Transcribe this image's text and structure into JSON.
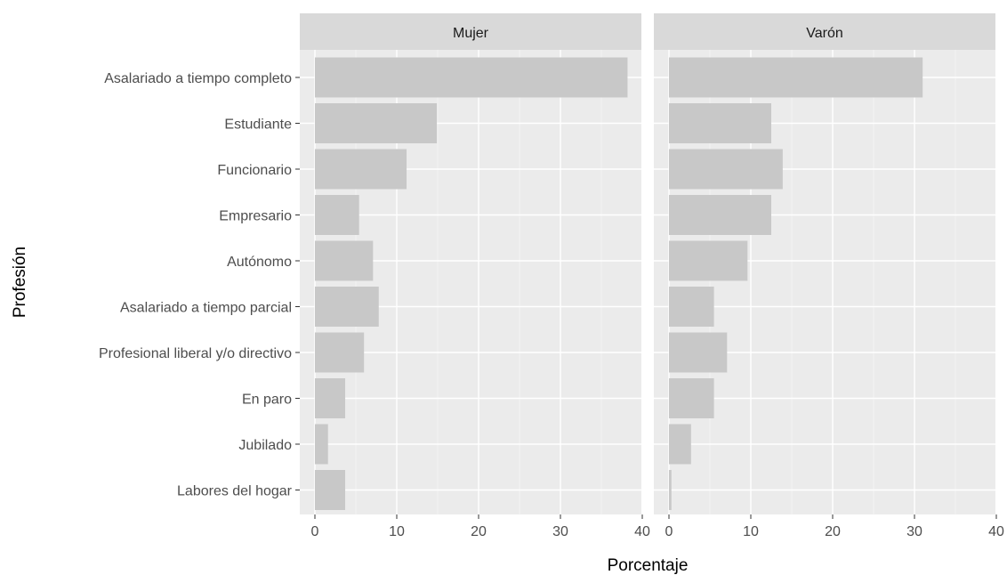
{
  "chart_data": {
    "type": "bar",
    "orientation": "horizontal",
    "xlabel": "Porcentaje",
    "ylabel": "Profesión",
    "xlim": [
      0,
      40
    ],
    "xticks": [
      0,
      10,
      20,
      30,
      40
    ],
    "grid": true,
    "categories": [
      "Asalariado a tiempo completo",
      "Estudiante",
      "Funcionario",
      "Empresario",
      "Autónomo",
      "Asalariado a tiempo parcial",
      "Profesional liberal y/o directivo",
      "En paro",
      "Jubilado",
      "Labores del hogar"
    ],
    "panels": [
      {
        "name": "Mujer",
        "values": [
          38.2,
          14.9,
          11.2,
          5.4,
          7.1,
          7.8,
          6.0,
          3.7,
          1.6,
          3.7
        ]
      },
      {
        "name": "Varón",
        "values": [
          31.0,
          12.5,
          13.9,
          12.5,
          9.6,
          5.5,
          7.1,
          5.5,
          2.7,
          0.3
        ]
      }
    ],
    "colors": {
      "bar": "#c8c8c8",
      "panel_bg": "#ebebeb",
      "strip_bg": "#d9d9d9",
      "grid": "#ffffff",
      "tick": "#333333"
    }
  }
}
